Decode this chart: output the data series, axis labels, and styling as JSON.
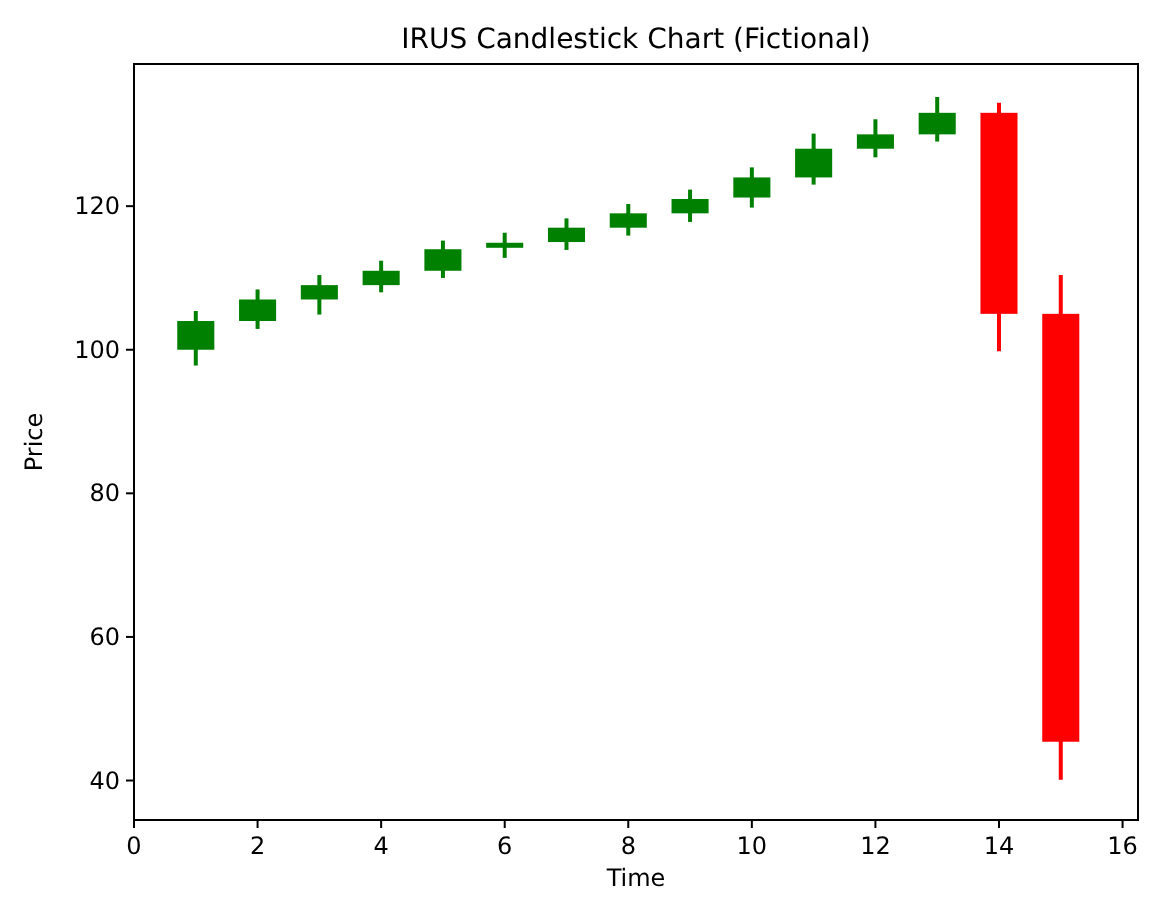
{
  "chart_data": {
    "type": "candlestick",
    "title": "IRUS Candlestick Chart (Fictional)",
    "xlabel": "Time",
    "ylabel": "Price",
    "x": [
      1,
      2,
      3,
      4,
      5,
      6,
      7,
      8,
      9,
      10,
      11,
      12,
      13,
      14,
      15
    ],
    "ohlc": [
      [
        100,
        105.4,
        97.8,
        104
      ],
      [
        104,
        108.4,
        102.9,
        107
      ],
      [
        107,
        110.4,
        104.9,
        109
      ],
      [
        109,
        112.4,
        108,
        111
      ],
      [
        111,
        115.2,
        110,
        114
      ],
      [
        114.2,
        116.3,
        112.8,
        114.9
      ],
      [
        115,
        118.3,
        113.9,
        117
      ],
      [
        117,
        120.3,
        115.9,
        119
      ],
      [
        119,
        122.3,
        117.8,
        121
      ],
      [
        121.2,
        125.4,
        119.8,
        124
      ],
      [
        124,
        130.1,
        123,
        128
      ],
      [
        128,
        132.1,
        126.8,
        130
      ],
      [
        130,
        135.2,
        129,
        133
      ],
      [
        133,
        134.4,
        99.8,
        105
      ],
      [
        105,
        110.4,
        40.1,
        45.4
      ]
    ],
    "colors": [
      "#008000",
      "#008000",
      "#008000",
      "#008000",
      "#008000",
      "#008000",
      "#008000",
      "#008000",
      "#008000",
      "#008000",
      "#008000",
      "#008000",
      "#008000",
      "#ff0000",
      "#ff0000"
    ],
    "xlim": [
      0,
      16.25
    ],
    "xticks": [
      0,
      2,
      4,
      6,
      8,
      10,
      12,
      14,
      16
    ],
    "ylim": [
      34.5,
      139.8
    ],
    "yticks": [
      40,
      60,
      80,
      100,
      120
    ],
    "grid": false
  }
}
